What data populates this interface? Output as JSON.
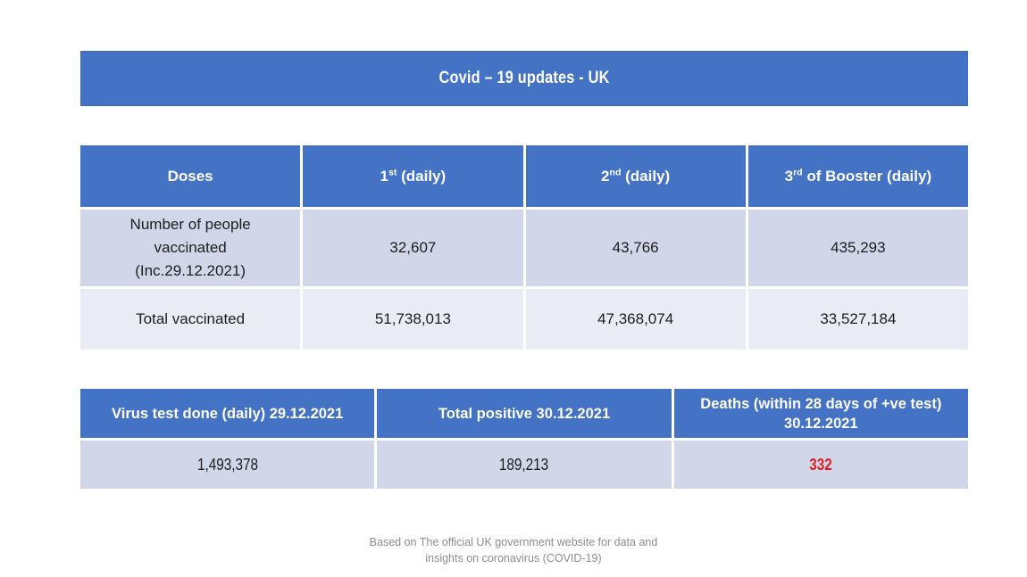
{
  "banner": {
    "title": "Covid – 19 updates - UK"
  },
  "vaccine_table": {
    "headers": [
      {
        "text": "Doses"
      },
      {
        "base": "1",
        "sup": "st",
        "rest": " (daily)"
      },
      {
        "base": "2",
        "sup": "nd",
        "rest": " (daily)"
      },
      {
        "base": "3",
        "sup": "rd",
        "rest": " of Booster (daily)"
      }
    ],
    "rows": [
      {
        "label": "Number of people vaccinated (Inc.29.12.2021)",
        "values": [
          "32,607",
          "43,766",
          "435,293"
        ]
      },
      {
        "label": "Total vaccinated",
        "values": [
          "51,738,013",
          "47,368,074",
          "33,527,184"
        ]
      }
    ]
  },
  "stats_table": {
    "headers": [
      "Virus test done (daily) 29.12.2021",
      "Total positive 30.12.2021",
      "Deaths (within 28 days of +ve test) 30.12.2021"
    ],
    "values": [
      "1,493,378",
      "189,213",
      "332"
    ]
  },
  "footer": {
    "line1": "Based on The official UK government website for data and",
    "line2": "insights on coronavirus (COVID-19)"
  },
  "colors": {
    "accent_blue": "#4472C4",
    "row_shaded": "#D1D6E9",
    "row_light": "#EAECF5",
    "deaths_red": "#DB1F26",
    "footer_gray": "#8E8E8E"
  }
}
